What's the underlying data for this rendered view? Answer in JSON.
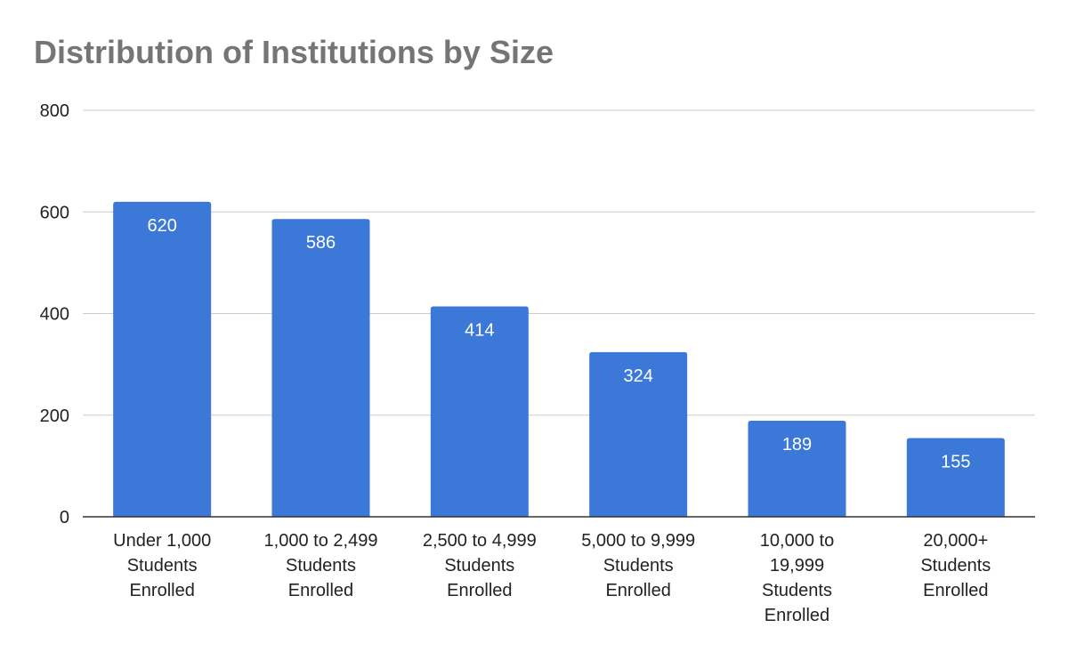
{
  "chart_data": {
    "type": "bar",
    "title": "Distribution of Institutions by Size",
    "xlabel": "",
    "ylabel": "",
    "categories": [
      [
        "Under 1,000",
        "Students",
        "Enrolled"
      ],
      [
        "1,000 to 2,499",
        "Students",
        "Enrolled"
      ],
      [
        "2,500 to 4,999",
        "Students",
        "Enrolled"
      ],
      [
        "5,000 to 9,999",
        "Students",
        "Enrolled"
      ],
      [
        "10,000 to",
        "19,999",
        "Students",
        "Enrolled"
      ],
      [
        "20,000+",
        "Students",
        "Enrolled"
      ]
    ],
    "values": [
      620,
      586,
      414,
      324,
      189,
      155
    ],
    "ylim": [
      0,
      800
    ],
    "yticks": [
      0,
      200,
      400,
      600,
      800
    ],
    "grid": true,
    "legend": "none",
    "bar_color": "#3c78d8",
    "grid_color": "#cccccc",
    "axis_color": "#333333",
    "data_label_color": "#ffffff"
  }
}
